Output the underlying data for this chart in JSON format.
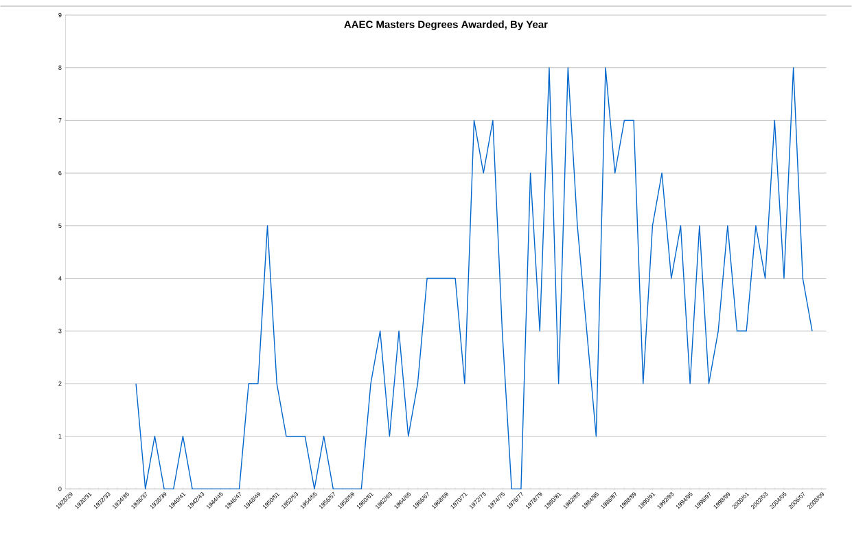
{
  "chart_data": {
    "type": "line",
    "title": "AAEC Masters Degrees Awarded, By Year",
    "categories": [
      "1928/29",
      null,
      "1930/31",
      null,
      "1932/33",
      null,
      "1934/35",
      null,
      "1936/37",
      null,
      "1938/39",
      null,
      "1940/41",
      null,
      "1942/43",
      null,
      "1944/45",
      null,
      "1946/47",
      null,
      "1948/49",
      null,
      "1950/51",
      null,
      "1952/53",
      null,
      "1954/55",
      null,
      "1956/57",
      null,
      "1958/59",
      null,
      "1960/61",
      null,
      "1962/63",
      null,
      "1964/65",
      null,
      "1966/67",
      null,
      "1968/69",
      null,
      "1970/71",
      null,
      "1972/73",
      null,
      "1974/75",
      null,
      "1976/77",
      null,
      "1978/79",
      null,
      "1980/81",
      null,
      "1982/83",
      null,
      "1984/85",
      null,
      "1986/87",
      null,
      "1988/89",
      null,
      "1990/91",
      null,
      "1992/93",
      null,
      "1994/95",
      null,
      "1996/97",
      null,
      "1998/99",
      null,
      "2000/01",
      null,
      "2002/03",
      null,
      "2004/05",
      null,
      "2006/07",
      null,
      "2008/09"
    ],
    "values": [
      null,
      null,
      null,
      null,
      null,
      null,
      null,
      2,
      0,
      1,
      0,
      0,
      1,
      0,
      0,
      0,
      0,
      0,
      0,
      2,
      2,
      5,
      2,
      1,
      1,
      1,
      0,
      1,
      0,
      0,
      0,
      0,
      2,
      3,
      1,
      3,
      1,
      2,
      4,
      4,
      4,
      4,
      2,
      7,
      6,
      7,
      3,
      0,
      0,
      6,
      3,
      8,
      2,
      8,
      5,
      3,
      1,
      8,
      6,
      7,
      7,
      2,
      5,
      6,
      4,
      5,
      2,
      5,
      2,
      3,
      5,
      3,
      3,
      5,
      4,
      7,
      4,
      8,
      4,
      3,
      null
    ],
    "color": "#0066cc",
    "ylim": [
      0,
      9
    ],
    "yticks": [
      0,
      1,
      2,
      3,
      4,
      5,
      6,
      7,
      8,
      9
    ],
    "grid": "y",
    "marker": "none",
    "line_style": "solid"
  }
}
